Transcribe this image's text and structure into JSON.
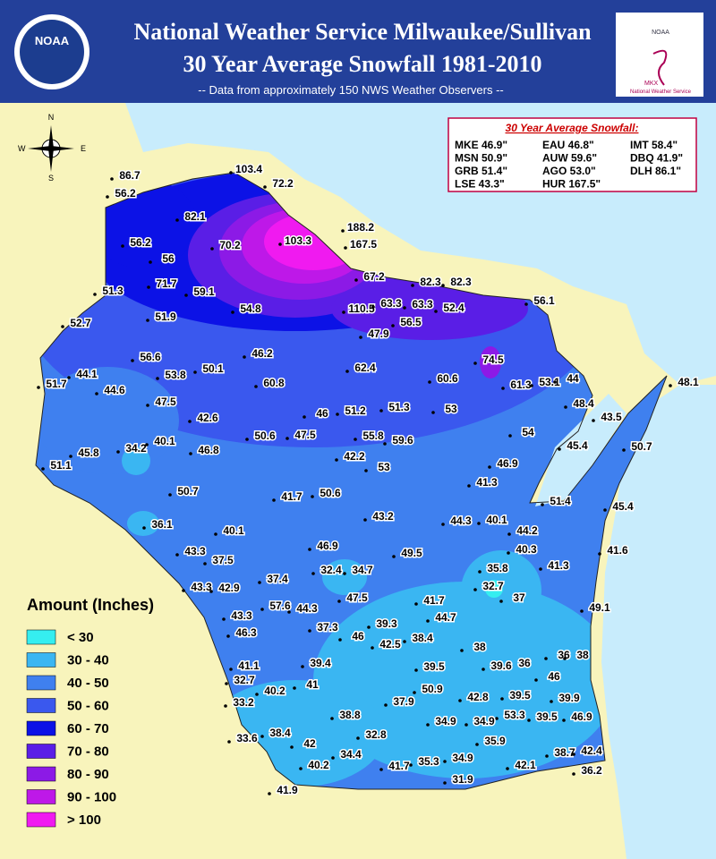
{
  "header": {
    "title_line1": "National Weather Service Milwaukee/Sullivan",
    "title_line2": "30 Year Average Snowfall 1981-2010",
    "subtitle": "-- Data from approximately 150 NWS Weather Observers --",
    "logo_left": "NOAA",
    "logo_right_top": "NOAA",
    "logo_right_code": "MKX",
    "logo_right_bottom": "National Weather Service"
  },
  "compass": {
    "n": "N",
    "e": "E",
    "s": "S",
    "w": "W"
  },
  "summary": {
    "title": "30 Year Average Snowfall:",
    "entries": [
      "MKE 46.9\"",
      "MSN 50.9\"",
      "GRB 51.4\"",
      "LSE 43.3\"",
      "EAU 46.8\"",
      "AUW 59.6\"",
      "AGO 53.0\"",
      "HUR 167.5\"",
      "IMT 58.4\"",
      "DBQ 41.9\"",
      "DLH 86.1\""
    ]
  },
  "legend": {
    "title": "Amount (Inches)",
    "items": [
      {
        "label": "< 30",
        "color": "#35eef0"
      },
      {
        "label": "30 - 40",
        "color": "#3ab6f2"
      },
      {
        "label": "40 - 50",
        "color": "#3f80ef"
      },
      {
        "label": "50 - 60",
        "color": "#3a58ee"
      },
      {
        "label": "60 - 70",
        "color": "#0c12e6"
      },
      {
        "label": "70 - 80",
        "color": "#5a1ee6"
      },
      {
        "label": "80 - 90",
        "color": "#8c1ae6"
      },
      {
        "label": "90 - 100",
        "color": "#be18e8"
      },
      {
        "label": "> 100",
        "color": "#f01af0"
      }
    ]
  },
  "stations": [
    86.7,
    103.4,
    72.2,
    56.2,
    82.1,
    188.2,
    167.5,
    56.2,
    70.2,
    103.3,
    56,
    51.3,
    71.7,
    59.1,
    67.2,
    82.3,
    82.3,
    110.5,
    63.3,
    63.3,
    52.4,
    56.1,
    52.7,
    51.9,
    54.8,
    56.5,
    47.9,
    56.6,
    46.2,
    74.5,
    44.1,
    53.8,
    50.1,
    62.4,
    60.6,
    61.3,
    53.1,
    44,
    48.1,
    51.7,
    44.6,
    60.8,
    47.5,
    46,
    51.2,
    51.3,
    53,
    48.4,
    43.5,
    42.6,
    50.6,
    47.5,
    55.8,
    59.6,
    54,
    45.4,
    50.7,
    34.2,
    40.1,
    46.8,
    45.8,
    42.2,
    53,
    46.9,
    51.1,
    41.3,
    50.7,
    41.7,
    50.6,
    51.4,
    45.4,
    43.2,
    44.3,
    40.1,
    36.1,
    40.1,
    44.2,
    46.9,
    49.5,
    40.3,
    41.6,
    43.3,
    37.5,
    41.3,
    35.8,
    32.4,
    34.7,
    37.4,
    43.3,
    42.9,
    32.7,
    37,
    47.5,
    41.7,
    49.1,
    57.6,
    44.3,
    43.3,
    44.7,
    39.3,
    37.3,
    46.3,
    46,
    42.5,
    38.4,
    38,
    36,
    38,
    36,
    39.6,
    39.4,
    41.1,
    39.5,
    46,
    32.7,
    40.2,
    41,
    50.9,
    33.2,
    37.9,
    42.8,
    39.5,
    39.9,
    38.8,
    53.3,
    39.5,
    46.9,
    34.9,
    34.9,
    32.8,
    38.4,
    33.6,
    42,
    35.9,
    34.4,
    38.7,
    42.4,
    40.2,
    41.7,
    35.3,
    34.9,
    42.1,
    36.2,
    31.9,
    41.9
  ]
}
